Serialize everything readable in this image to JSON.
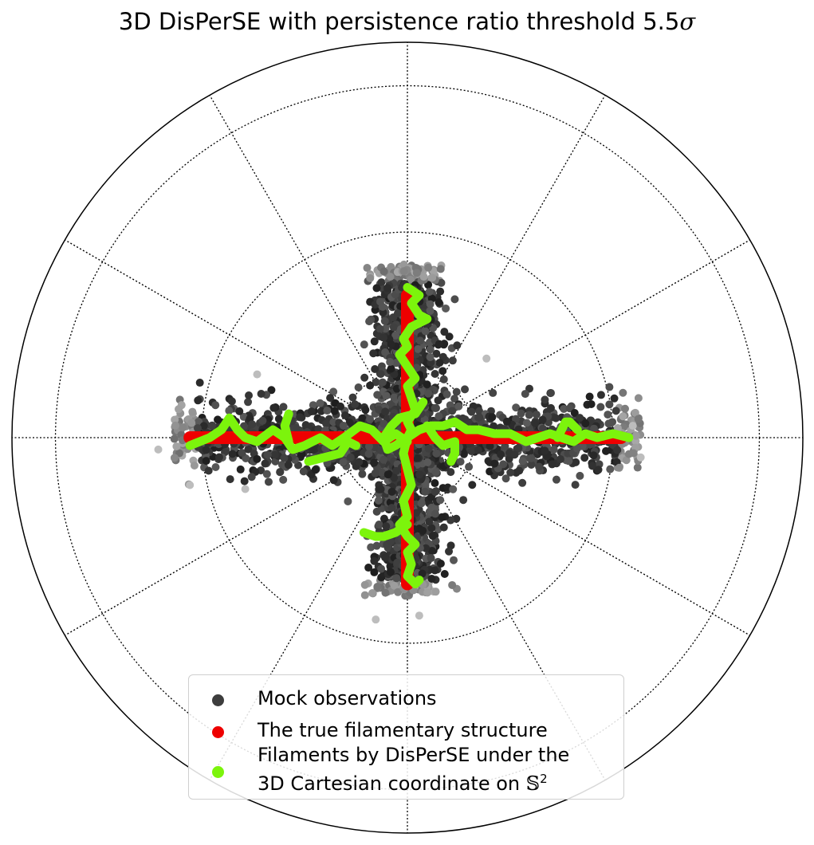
{
  "chart_data": {
    "type": "scatter",
    "projection": "polar",
    "title": "3D DisPerSE with persistence ratio threshold 5.5",
    "title_symbol": "σ",
    "grid": true,
    "legend_position": "lower-center",
    "radial_range": [
      0,
      1
    ],
    "series": [
      {
        "name": "Mock observations",
        "color": "#3d3d3d",
        "description_points": "dense cross-shaped cloud of points around the vertical and horizontal arms",
        "arms": [
          {
            "direction": "north",
            "extent": [
              0,
              0.44
            ]
          },
          {
            "direction": "south",
            "extent": [
              0,
              0.4
            ]
          },
          {
            "direction": "east",
            "extent": [
              0,
              0.59
            ]
          },
          {
            "direction": "west",
            "extent": [
              0,
              0.59
            ]
          }
        ]
      },
      {
        "name": "The true filamentary structure",
        "color": "#ee0000",
        "segments": [
          {
            "from": [
              -0.55,
              0.0
            ],
            "to": [
              0.54,
              0.0
            ]
          },
          {
            "from": [
              0.0,
              0.36
            ],
            "to": [
              0.0,
              -0.37
            ]
          }
        ]
      },
      {
        "name_line1": "Filaments by DisPerSE under the",
        "name_line2": "3D Cartesian coordinate on ",
        "name_symbol": "𝕊",
        "name_sup": "2",
        "color": "#7cf40c",
        "paths": [
          [
            [
              -0.55,
              -0.02
            ],
            [
              -0.5,
              0.0
            ],
            [
              -0.47,
              0.02
            ],
            [
              -0.45,
              0.05
            ],
            [
              -0.43,
              0.02
            ],
            [
              -0.41,
              0.0
            ],
            [
              -0.38,
              -0.01
            ],
            [
              -0.34,
              0.02
            ],
            [
              -0.31,
              0.0
            ],
            [
              -0.29,
              -0.03
            ],
            [
              -0.26,
              -0.02
            ],
            [
              -0.22,
              0.0
            ],
            [
              -0.19,
              -0.02
            ],
            [
              -0.16,
              0.0
            ],
            [
              -0.12,
              0.03
            ],
            [
              -0.09,
              0.02
            ],
            [
              -0.06,
              -0.01
            ],
            [
              -0.03,
              0.01
            ],
            [
              0.0,
              -0.01
            ]
          ],
          [
            [
              -0.3,
              -0.01
            ],
            [
              -0.31,
              0.03
            ],
            [
              -0.3,
              0.06
            ]
          ],
          [
            [
              -0.13,
              -0.02
            ],
            [
              -0.15,
              -0.01
            ],
            [
              -0.17,
              -0.04
            ],
            [
              -0.21,
              -0.05
            ],
            [
              -0.25,
              -0.06
            ]
          ],
          [
            [
              0.0,
              0.38
            ],
            [
              0.03,
              0.36
            ],
            [
              0.01,
              0.34
            ],
            [
              0.03,
              0.31
            ],
            [
              0.05,
              0.3
            ],
            [
              0.01,
              0.28
            ],
            [
              -0.01,
              0.25
            ],
            [
              0.0,
              0.23
            ],
            [
              -0.02,
              0.21
            ],
            [
              0.0,
              0.18
            ],
            [
              0.02,
              0.15
            ],
            [
              0.0,
              0.13
            ],
            [
              0.01,
              0.1
            ],
            [
              0.02,
              0.07
            ],
            [
              0.0,
              0.04
            ],
            [
              0.01,
              0.02
            ],
            [
              0.0,
              0.0
            ],
            [
              -0.01,
              -0.04
            ],
            [
              0.0,
              -0.08
            ],
            [
              0.01,
              -0.12
            ],
            [
              -0.01,
              -0.16
            ],
            [
              0.0,
              -0.2
            ],
            [
              -0.02,
              -0.22
            ],
            [
              0.0,
              -0.25
            ],
            [
              0.02,
              -0.27
            ],
            [
              0.0,
              -0.29
            ],
            [
              0.01,
              -0.32
            ],
            [
              0.0,
              -0.35
            ],
            [
              0.02,
              -0.37
            ],
            [
              0.03,
              -0.36
            ]
          ],
          [
            [
              0.0,
              -0.22
            ],
            [
              -0.03,
              -0.24
            ],
            [
              -0.06,
              -0.25
            ],
            [
              -0.08,
              -0.25
            ],
            [
              -0.11,
              -0.24
            ]
          ],
          [
            [
              0.0,
              0.0
            ],
            [
              0.03,
              0.02
            ],
            [
              0.06,
              0.03
            ],
            [
              0.09,
              0.03
            ],
            [
              0.12,
              0.04
            ],
            [
              0.15,
              0.02
            ],
            [
              0.18,
              0.02
            ],
            [
              0.22,
              0.01
            ],
            [
              0.26,
              0.01
            ],
            [
              0.3,
              -0.01
            ],
            [
              0.33,
              0.0
            ],
            [
              0.36,
              0.01
            ],
            [
              0.39,
              0.0
            ],
            [
              0.42,
              -0.01
            ],
            [
              0.45,
              0.01
            ],
            [
              0.48,
              0.0
            ],
            [
              0.52,
              0.01
            ],
            [
              0.56,
              0.0
            ]
          ],
          [
            [
              0.38,
              0.0
            ],
            [
              0.4,
              0.04
            ],
            [
              0.41,
              0.04
            ],
            [
              0.43,
              0.02
            ]
          ],
          [
            [
              0.05,
              0.03
            ],
            [
              0.07,
              0.0
            ],
            [
              0.09,
              -0.02
            ],
            [
              0.12,
              -0.01
            ],
            [
              0.12,
              -0.04
            ],
            [
              0.11,
              -0.06
            ]
          ],
          [
            [
              0.0,
              0.0
            ],
            [
              -0.03,
              -0.02
            ],
            [
              -0.05,
              -0.03
            ],
            [
              -0.06,
              0.0
            ],
            [
              -0.04,
              0.03
            ],
            [
              -0.02,
              0.05
            ],
            [
              0.02,
              0.06
            ],
            [
              0.04,
              0.09
            ]
          ]
        ]
      }
    ]
  }
}
